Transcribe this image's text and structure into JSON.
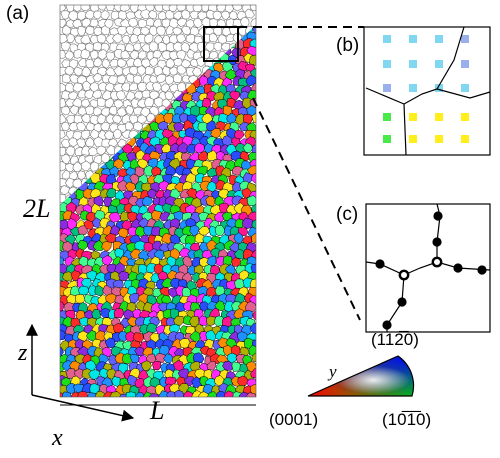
{
  "panels": {
    "a": "(a)",
    "b": "(b)",
    "c": "(c)"
  },
  "axes": {
    "z": "z",
    "x": "x",
    "length": "L",
    "height": "2L"
  },
  "ipf": {
    "corner_bottom_left": "(0001)",
    "corner_bottom_right": "(10̅1̅0)",
    "corner_top": "(112̅0)",
    "axis": "y"
  },
  "colors": {
    "grain_boundary": "#000000",
    "empty_grain_outline": "#777777",
    "grain_palette": [
      "#ff2a2a",
      "#19e019",
      "#2a4cff",
      "#00e6e6",
      "#ff2aff",
      "#ffe619",
      "#ff8c00",
      "#8a2be2",
      "#ff1493",
      "#00c080",
      "#1e90ff",
      "#b0b000",
      "#40ff90",
      "#e06090",
      "#6060ff"
    ],
    "node_b_cyan": "#7fd8f0",
    "node_b_blue": "#9ab0ec",
    "node_b_yellow": "#ffee1a",
    "node_b_green": "#4ae84a"
  }
}
